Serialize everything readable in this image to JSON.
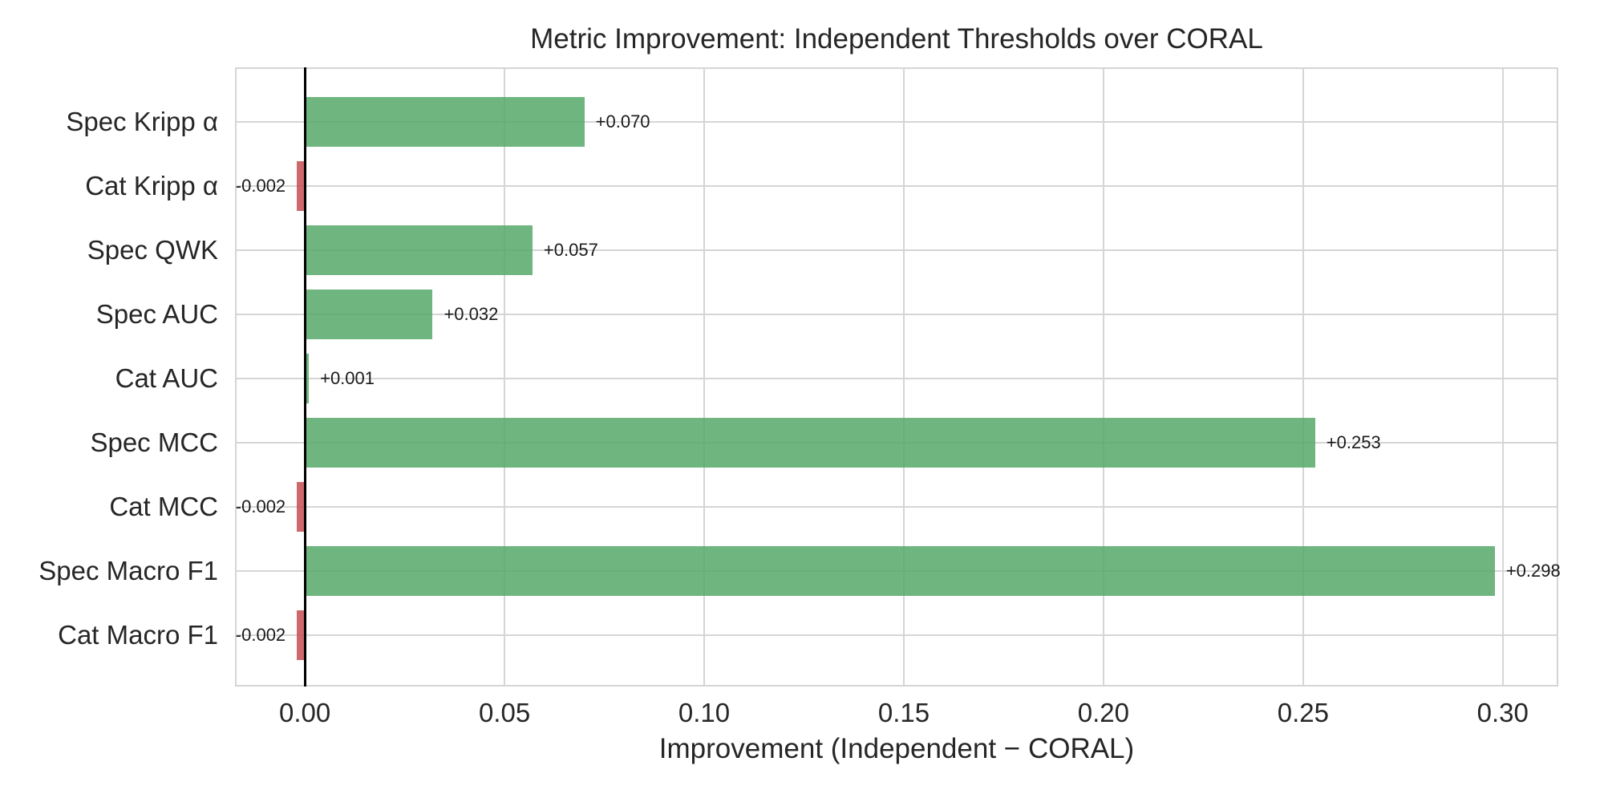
{
  "chart_data": {
    "type": "bar",
    "orientation": "horizontal",
    "title": "Metric Improvement: Independent Thresholds over CORAL",
    "xlabel": "Improvement (Independent − CORAL)",
    "categories": [
      "Spec Kripp α",
      "Cat Kripp α",
      "Spec QWK",
      "Spec AUC",
      "Cat AUC",
      "Spec MCC",
      "Cat MCC",
      "Spec Macro F1",
      "Cat Macro F1"
    ],
    "values": [
      0.07,
      -0.002,
      0.057,
      0.032,
      0.001,
      0.253,
      -0.002,
      0.298,
      -0.002
    ],
    "value_labels": [
      "+0.070",
      "-0.002",
      "+0.057",
      "+0.032",
      "+0.001",
      "+0.253",
      "-0.002",
      "+0.298",
      "-0.002"
    ],
    "x_ticks": [
      0.0,
      0.05,
      0.1,
      0.15,
      0.2,
      0.25,
      0.3
    ],
    "x_tick_labels": [
      "0.00",
      "0.05",
      "0.10",
      "0.15",
      "0.20",
      "0.25",
      "0.30"
    ],
    "xlim": [
      -0.0175,
      0.3139
    ],
    "grid": true,
    "legend": false,
    "colors": {
      "positive_bar": "rgba(85,168,104,0.85)",
      "negative_bar": "rgba(196,78,82,0.85)",
      "positive_hex": "#55A868",
      "negative_hex": "#C44E52",
      "zero_line": "#000000",
      "gridline": "#D5D5D5",
      "text": "#262626"
    }
  }
}
